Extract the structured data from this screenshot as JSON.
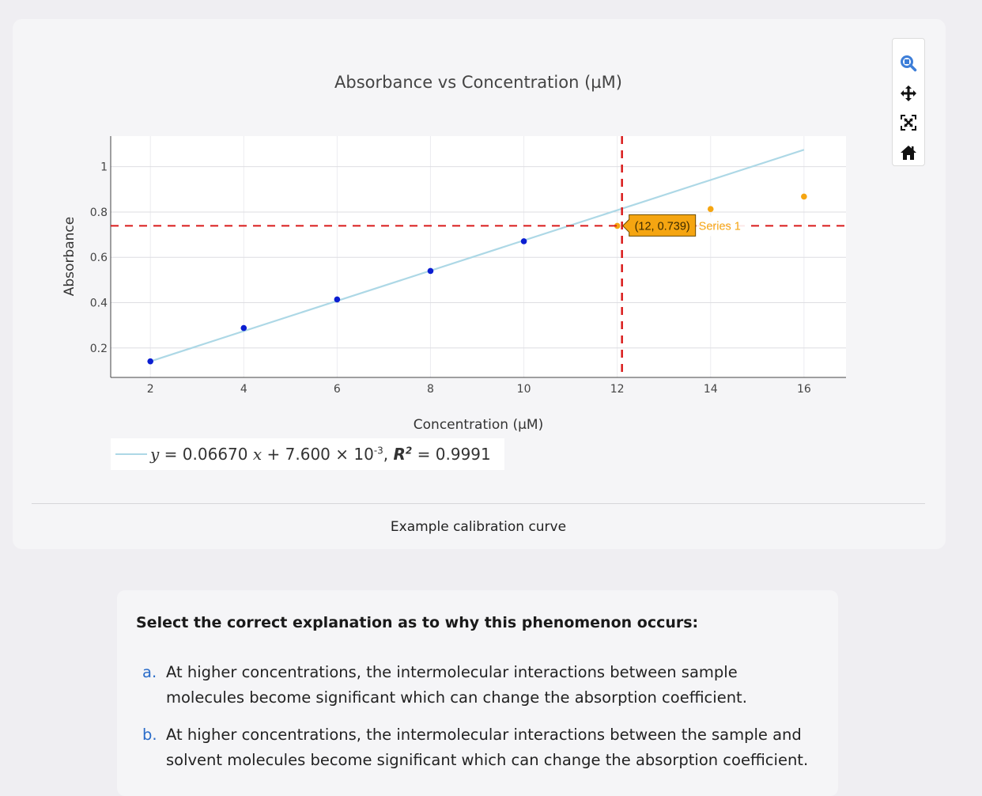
{
  "figure": {
    "caption": "Example calibration curve",
    "legend": {
      "slope": "0.06670",
      "intercept_mantissa": "7.600",
      "intercept_exponent": "-3",
      "r2_value": "0.9991",
      "line_color": "#add8e6"
    }
  },
  "chart_data": {
    "type": "scatter",
    "title": "Absorbance vs Concentration (µM)",
    "xlabel": "Concentration (µM)",
    "ylabel": "Absorbance",
    "xlim": [
      1.15,
      16.9
    ],
    "ylim": [
      0.07,
      1.135
    ],
    "x_ticks": [
      2,
      4,
      6,
      8,
      10,
      12,
      14,
      16
    ],
    "y_ticks": [
      0.2,
      0.4,
      0.6,
      0.8,
      1
    ],
    "y_tick_labels": [
      "0.2",
      "0.4",
      "0.6",
      "0.8",
      "1"
    ],
    "grid": true,
    "series": [
      {
        "name": "Series 1",
        "color_inlier": "#0b1ed1",
        "color_outlier": "#f5a511",
        "points": [
          {
            "x": 2,
            "y": 0.141,
            "inlier": true
          },
          {
            "x": 4,
            "y": 0.288,
            "inlier": true
          },
          {
            "x": 6,
            "y": 0.414,
            "inlier": true
          },
          {
            "x": 8,
            "y": 0.54,
            "inlier": true
          },
          {
            "x": 10,
            "y": 0.671,
            "inlier": true
          },
          {
            "x": 12,
            "y": 0.739,
            "inlier": false
          },
          {
            "x": 14,
            "y": 0.813,
            "inlier": false
          },
          {
            "x": 16,
            "y": 0.868,
            "inlier": false
          }
        ]
      }
    ],
    "fit_line": {
      "slope": 0.0667,
      "intercept": 0.0076,
      "x_start": 2,
      "x_end": 16,
      "color": "#add8e6"
    },
    "crosshair": {
      "x": 12,
      "y": 0.739,
      "color": "#d91a1a"
    },
    "hover": {
      "label": "(12, 0.739)",
      "series": "Series 1",
      "box_color": "#f5a511"
    }
  },
  "question": {
    "prompt": "Select the correct explanation as to why this phenomenon occurs:",
    "options": [
      {
        "letter": "a.",
        "text": "At higher concentrations, the intermolecular interactions between sample molecules become significant which can change the absorption coefficient."
      },
      {
        "letter": "b.",
        "text": "At higher concentrations, the intermolecular interactions between the sample and solvent molecules become significant which can change the absorption coefficient."
      }
    ]
  },
  "modebar": {
    "buttons": [
      "zoom-icon",
      "pan-icon",
      "autoscale-icon",
      "reset-axes-icon"
    ],
    "active_color": "#3d7ed8"
  }
}
